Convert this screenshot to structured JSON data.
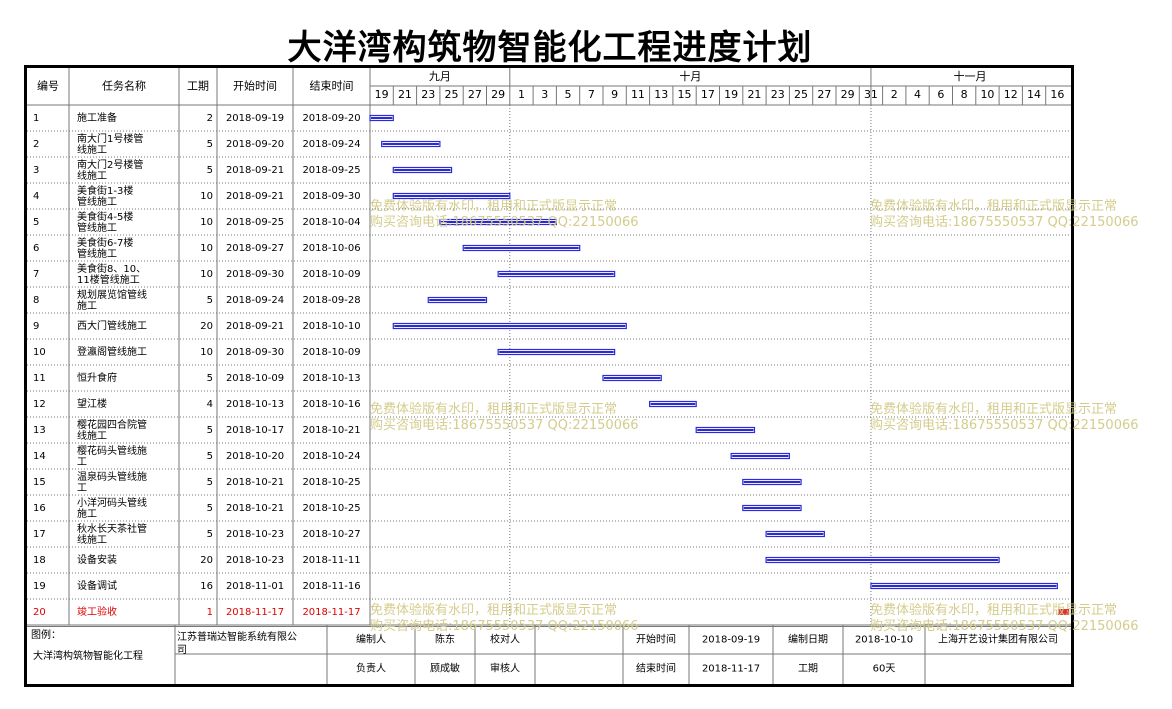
{
  "page_title": "大洋湾构筑物智能化工程进度计划",
  "headers": {
    "no": "编号",
    "name": "任务名称",
    "duration": "工期",
    "start": "开始时间",
    "end": "结束时间"
  },
  "months": [
    "九月",
    "十月",
    "十一月"
  ],
  "day_ticks": [
    "19",
    "21",
    "23",
    "25",
    "27",
    "29",
    "1",
    "3",
    "5",
    "7",
    "9",
    "11",
    "13",
    "15",
    "17",
    "19",
    "21",
    "23",
    "25",
    "27",
    "29",
    "31",
    "2",
    "4",
    "6",
    "8",
    "10",
    "12",
    "14",
    "16"
  ],
  "chart_data": {
    "type": "gantt",
    "title": "大洋湾构筑物智能化工程进度计划",
    "x_range": [
      "2018-09-19",
      "2018-11-17"
    ],
    "tasks": [
      {
        "no": "1",
        "name": "施工准备",
        "duration": "2",
        "start": "2018-09-19",
        "end": "2018-09-20"
      },
      {
        "no": "2",
        "name": "南大门1号楼管线施工",
        "duration": "5",
        "start": "2018-09-20",
        "end": "2018-09-24"
      },
      {
        "no": "3",
        "name": "南大门2号楼管线施工",
        "duration": "5",
        "start": "2018-09-21",
        "end": "2018-09-25"
      },
      {
        "no": "4",
        "name": "美食街1-3楼管线施工",
        "duration": "10",
        "start": "2018-09-21",
        "end": "2018-09-30"
      },
      {
        "no": "5",
        "name": "美食街4-5楼管线施工",
        "duration": "10",
        "start": "2018-09-25",
        "end": "2018-10-04"
      },
      {
        "no": "6",
        "name": "美食街6-7楼管线施工",
        "duration": "10",
        "start": "2018-09-27",
        "end": "2018-10-06"
      },
      {
        "no": "7",
        "name": "美食街8、10、11楼管线施工",
        "duration": "10",
        "start": "2018-09-30",
        "end": "2018-10-09"
      },
      {
        "no": "8",
        "name": "规划展览馆管线施工",
        "duration": "5",
        "start": "2018-09-24",
        "end": "2018-09-28"
      },
      {
        "no": "9",
        "name": "西大门管线施工",
        "duration": "20",
        "start": "2018-09-21",
        "end": "2018-10-10"
      },
      {
        "no": "10",
        "name": "登瀛阁管线施工",
        "duration": "10",
        "start": "2018-09-30",
        "end": "2018-10-09"
      },
      {
        "no": "11",
        "name": "恒升食府",
        "duration": "5",
        "start": "2018-10-09",
        "end": "2018-10-13"
      },
      {
        "no": "12",
        "name": "望江楼",
        "duration": "4",
        "start": "2018-10-13",
        "end": "2018-10-16"
      },
      {
        "no": "13",
        "name": "樱花园四合院管线施工",
        "duration": "5",
        "start": "2018-10-17",
        "end": "2018-10-21"
      },
      {
        "no": "14",
        "name": "樱花码头管线施工",
        "duration": "5",
        "start": "2018-10-20",
        "end": "2018-10-24"
      },
      {
        "no": "15",
        "name": "温泉码头管线施工",
        "duration": "5",
        "start": "2018-10-21",
        "end": "2018-10-25"
      },
      {
        "no": "16",
        "name": "小洋河码头管线施工",
        "duration": "5",
        "start": "2018-10-21",
        "end": "2018-10-25"
      },
      {
        "no": "17",
        "name": "秋水长天茶社管线施工",
        "duration": "5",
        "start": "2018-10-23",
        "end": "2018-10-27"
      },
      {
        "no": "18",
        "name": "设备安装",
        "duration": "20",
        "start": "2018-10-23",
        "end": "2018-11-11"
      },
      {
        "no": "19",
        "name": "设备调试",
        "duration": "16",
        "start": "2018-11-01",
        "end": "2018-11-16"
      },
      {
        "no": "20",
        "name": "竣工验收",
        "duration": "1",
        "start": "2018-11-17",
        "end": "2018-11-17",
        "milestone": true
      }
    ],
    "bar_color": "#2a2ad8",
    "milestone_color": "#e03030"
  },
  "footer": {
    "legend_label": "图例：",
    "project_name": "大洋湾构筑物智能化工程",
    "company": "江苏普瑞达智能系统有限公司",
    "compiler_label": "编制人",
    "compiler": "陈东",
    "checker_label": "校对人",
    "checker": "",
    "start_label": "开始时间",
    "start_value": "2018-09-19",
    "date_label": "编制日期",
    "date_value": "2018-10-10",
    "designer": "上海开艺设计集团有限公司",
    "manager_label": "负责人",
    "manager": "顾成敏",
    "reviewer_label": "审核人",
    "reviewer": "",
    "end_label": "结束时间",
    "end_value": "2018-11-17",
    "duration_label": "工期",
    "duration_value": "60天"
  },
  "watermark": {
    "line1": "免费体验版有水印，租用和正式版显示正常",
    "line2": "购买咨询电话:18675550537 QQ:22150066"
  },
  "colors": {
    "grid": "#777777",
    "red_text": "#e00000",
    "watermark": "#d4cc8c"
  }
}
